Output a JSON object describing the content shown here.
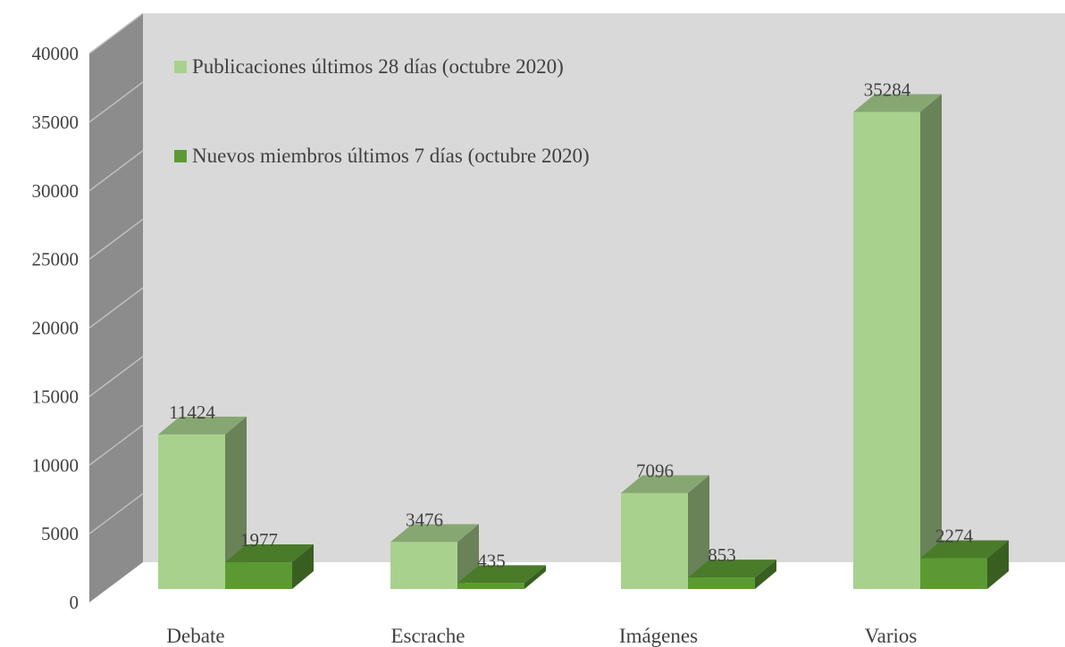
{
  "chart_data": {
    "type": "bar3d",
    "categories": [
      "Debate",
      "Escrache",
      "Imágenes",
      "Varios"
    ],
    "series": [
      {
        "name": "Publicaciones últimos 28 días (octubre 2020)",
        "color": "#a9d18e",
        "values": [
          11424,
          3476,
          7096,
          35284
        ]
      },
      {
        "name": "Nuevos miembros últimos 7 días (octubre 2020)",
        "color": "#5b9a33",
        "values": [
          1977,
          435,
          853,
          2274
        ]
      }
    ],
    "ylim": [
      0,
      40000
    ],
    "yticks": [
      0,
      5000,
      10000,
      15000,
      20000,
      25000,
      30000,
      35000,
      40000
    ],
    "grid": true,
    "legend": "top-left"
  }
}
